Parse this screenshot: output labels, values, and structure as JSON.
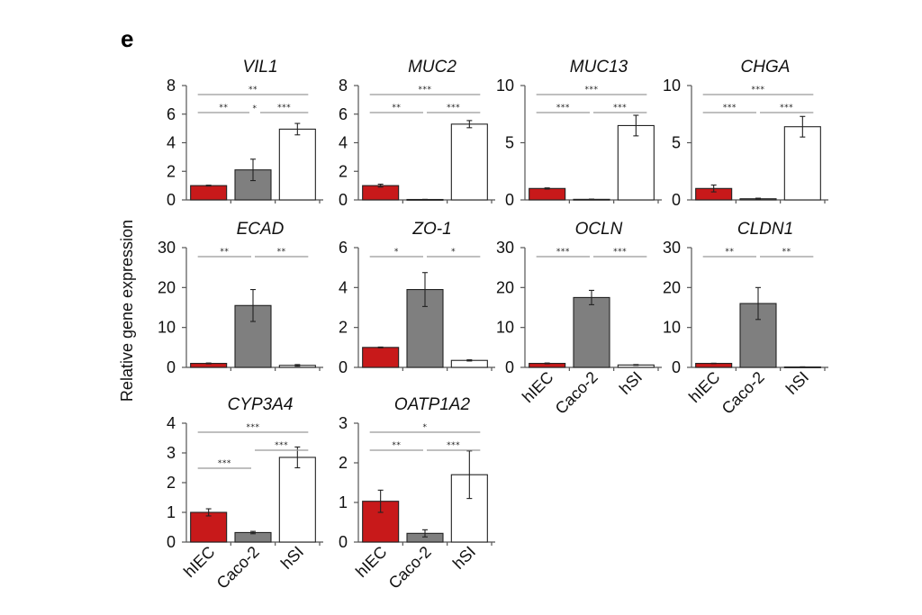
{
  "figure": {
    "panel_label": "e",
    "ylabel": "Relative gene expression"
  },
  "chart_data": {
    "type": "bar",
    "ylabel": "Relative gene expression",
    "categories": [
      "hIEC",
      "Caco-2",
      "hSI"
    ],
    "colors": {
      "hIEC": "#c8191a",
      "Caco-2": "#7f7f7f",
      "hSI": "#ffffff"
    },
    "panels": [
      {
        "title": "VIL1",
        "ylim": [
          0,
          8
        ],
        "yticks": [
          0,
          2,
          4,
          6,
          8
        ],
        "values": [
          1.0,
          2.1,
          4.95
        ],
        "errors": [
          0.03,
          0.75,
          0.4
        ],
        "significance": [
          {
            "from": 0,
            "to": 2,
            "label": "**",
            "level": 2
          },
          {
            "from": 0,
            "to": 1,
            "label": "**",
            "level": 1
          },
          {
            "from": 1,
            "to": 1,
            "label": "*",
            "level": 1,
            "centered": true
          },
          {
            "from": 1,
            "to": 2,
            "label": "***",
            "level": 1
          }
        ],
        "show_categories": false
      },
      {
        "title": "MUC2",
        "ylim": [
          0,
          8
        ],
        "yticks": [
          0,
          2,
          4,
          6,
          8
        ],
        "values": [
          1.0,
          0.03,
          5.3
        ],
        "errors": [
          0.1,
          0.01,
          0.25
        ],
        "significance": [
          {
            "from": 0,
            "to": 2,
            "label": "***",
            "level": 2
          },
          {
            "from": 0,
            "to": 1,
            "label": "**",
            "level": 1
          },
          {
            "from": 1,
            "to": 2,
            "label": "***",
            "level": 1
          }
        ],
        "show_categories": false
      },
      {
        "title": "MUC13",
        "ylim": [
          0,
          10
        ],
        "yticks": [
          0,
          5,
          10
        ],
        "values": [
          1.0,
          0.05,
          6.5
        ],
        "errors": [
          0.05,
          0.02,
          0.9
        ],
        "significance": [
          {
            "from": 0,
            "to": 2,
            "label": "***",
            "level": 2
          },
          {
            "from": 0,
            "to": 1,
            "label": "***",
            "level": 1
          },
          {
            "from": 1,
            "to": 2,
            "label": "***",
            "level": 1
          }
        ],
        "show_categories": false
      },
      {
        "title": "CHGA",
        "ylim": [
          0,
          10
        ],
        "yticks": [
          0,
          5,
          10
        ],
        "values": [
          1.0,
          0.1,
          6.4
        ],
        "errors": [
          0.3,
          0.05,
          0.9
        ],
        "significance": [
          {
            "from": 0,
            "to": 2,
            "label": "***",
            "level": 2
          },
          {
            "from": 0,
            "to": 1,
            "label": "***",
            "level": 1
          },
          {
            "from": 1,
            "to": 2,
            "label": "***",
            "level": 1
          }
        ],
        "show_categories": false
      },
      {
        "title": "ECAD",
        "ylim": [
          0,
          30
        ],
        "yticks": [
          0,
          10,
          20,
          30
        ],
        "values": [
          1.0,
          15.5,
          0.5
        ],
        "errors": [
          0.1,
          4.0,
          0.2
        ],
        "significance": [
          {
            "from": 0,
            "to": 1,
            "label": "**",
            "level": 1
          },
          {
            "from": 1,
            "to": 2,
            "label": "**",
            "level": 1
          }
        ],
        "show_categories": false
      },
      {
        "title": "ZO-1",
        "ylim": [
          0,
          6
        ],
        "yticks": [
          0,
          2,
          4,
          6
        ],
        "values": [
          1.0,
          3.9,
          0.35
        ],
        "errors": [
          0.02,
          0.85,
          0.03
        ],
        "significance": [
          {
            "from": 0,
            "to": 1,
            "label": "*",
            "level": 1
          },
          {
            "from": 1,
            "to": 2,
            "label": "*",
            "level": 1
          }
        ],
        "show_categories": false
      },
      {
        "title": "OCLN",
        "ylim": [
          0,
          30
        ],
        "yticks": [
          0,
          10,
          20,
          30
        ],
        "values": [
          1.0,
          17.5,
          0.6
        ],
        "errors": [
          0.1,
          1.8,
          0.1
        ],
        "significance": [
          {
            "from": 0,
            "to": 1,
            "label": "***",
            "level": 1
          },
          {
            "from": 1,
            "to": 2,
            "label": "***",
            "level": 1
          }
        ],
        "show_categories": true
      },
      {
        "title": "CLDN1",
        "ylim": [
          0,
          30
        ],
        "yticks": [
          0,
          10,
          20,
          30
        ],
        "values": [
          1.0,
          16.0,
          0.1
        ],
        "errors": [
          0.05,
          4.0,
          0.05
        ],
        "significance": [
          {
            "from": 0,
            "to": 1,
            "label": "**",
            "level": 1
          },
          {
            "from": 1,
            "to": 2,
            "label": "**",
            "level": 1
          }
        ],
        "show_categories": true
      },
      {
        "title": "CYP3A4",
        "ylim": [
          0,
          4
        ],
        "yticks": [
          0,
          1,
          2,
          3,
          4
        ],
        "values": [
          1.0,
          0.32,
          2.85
        ],
        "errors": [
          0.12,
          0.04,
          0.35
        ],
        "significance": [
          {
            "from": 0,
            "to": 2,
            "label": "***",
            "level": 3
          },
          {
            "from": 1,
            "to": 2,
            "label": "***",
            "level": 2
          },
          {
            "from": 0,
            "to": 1,
            "label": "***",
            "level": 1
          }
        ],
        "show_categories": true
      },
      {
        "title": "OATP1A2",
        "ylim": [
          0,
          3
        ],
        "yticks": [
          0,
          1,
          2,
          3
        ],
        "values": [
          1.03,
          0.22,
          1.7
        ],
        "errors": [
          0.28,
          0.09,
          0.6
        ],
        "significance": [
          {
            "from": 0,
            "to": 2,
            "label": "*",
            "level": 2
          },
          {
            "from": 0,
            "to": 1,
            "label": "**",
            "level": 1
          },
          {
            "from": 1,
            "to": 2,
            "label": "***",
            "level": 1
          }
        ],
        "show_categories": true
      }
    ]
  }
}
